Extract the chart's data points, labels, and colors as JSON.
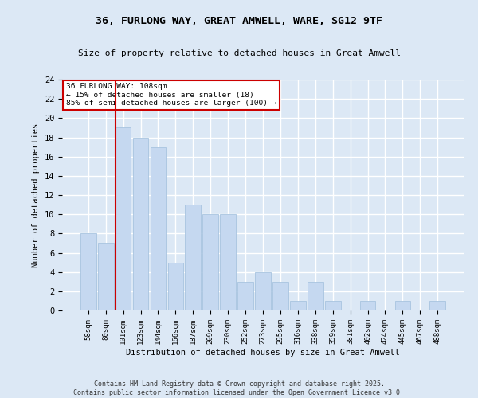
{
  "title1": "36, FURLONG WAY, GREAT AMWELL, WARE, SG12 9TF",
  "title2": "Size of property relative to detached houses in Great Amwell",
  "xlabel": "Distribution of detached houses by size in Great Amwell",
  "ylabel": "Number of detached properties",
  "categories": [
    "58sqm",
    "80sqm",
    "101sqm",
    "123sqm",
    "144sqm",
    "166sqm",
    "187sqm",
    "209sqm",
    "230sqm",
    "252sqm",
    "273sqm",
    "295sqm",
    "316sqm",
    "338sqm",
    "359sqm",
    "381sqm",
    "402sqm",
    "424sqm",
    "445sqm",
    "467sqm",
    "488sqm"
  ],
  "values": [
    8,
    7,
    19,
    18,
    17,
    5,
    11,
    10,
    10,
    3,
    4,
    3,
    1,
    3,
    1,
    0,
    1,
    0,
    1,
    0,
    1
  ],
  "bar_color": "#c5d8f0",
  "bar_edge_color": "#a8c4e0",
  "vline_x_index": 2,
  "vline_color": "#cc0000",
  "annotation_text": "36 FURLONG WAY: 108sqm\n← 15% of detached houses are smaller (18)\n85% of semi-detached houses are larger (100) →",
  "annotation_box_color": "#ffffff",
  "annotation_box_edge": "#cc0000",
  "ylim": [
    0,
    24
  ],
  "yticks": [
    0,
    2,
    4,
    6,
    8,
    10,
    12,
    14,
    16,
    18,
    20,
    22,
    24
  ],
  "background_color": "#dce8f5",
  "grid_color": "#ffffff",
  "footer": "Contains HM Land Registry data © Crown copyright and database right 2025.\nContains public sector information licensed under the Open Government Licence v3.0."
}
